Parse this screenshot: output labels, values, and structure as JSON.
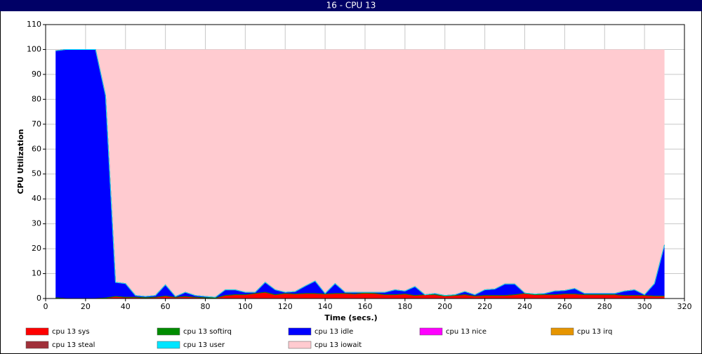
{
  "chart_data": {
    "type": "stacked-area",
    "title": "16 - CPU 13",
    "xlabel": "Time (secs.)",
    "ylabel": "CPU Utilization",
    "xlim": [
      0,
      320
    ],
    "xticks": [
      0,
      20,
      40,
      60,
      80,
      100,
      120,
      140,
      160,
      180,
      200,
      220,
      240,
      260,
      280,
      300,
      320
    ],
    "ylim": [
      0,
      110
    ],
    "yticks": [
      0,
      10,
      20,
      30,
      40,
      50,
      60,
      70,
      80,
      90,
      100,
      110
    ],
    "grid": true,
    "x": [
      5,
      10,
      15,
      20,
      25,
      30,
      35,
      40,
      45,
      50,
      55,
      60,
      65,
      70,
      75,
      80,
      85,
      90,
      95,
      100,
      105,
      110,
      115,
      120,
      125,
      130,
      135,
      140,
      145,
      150,
      155,
      160,
      165,
      170,
      175,
      180,
      185,
      190,
      195,
      200,
      205,
      210,
      215,
      220,
      225,
      230,
      235,
      240,
      245,
      250,
      255,
      260,
      265,
      270,
      275,
      280,
      285,
      290,
      295,
      300,
      305,
      310
    ],
    "series": [
      {
        "name": "cpu 13 sys",
        "color": "#ff0000",
        "values": [
          0.3,
          0,
          0,
          0,
          0,
          0.2,
          0.8,
          0.5,
          0.5,
          0.3,
          0.5,
          1,
          0.5,
          0.8,
          0.5,
          0.3,
          0.2,
          1.2,
          1.5,
          1.5,
          2,
          2.5,
          1.5,
          2,
          1.8,
          2,
          2,
          1.8,
          2,
          2,
          1.8,
          2.2,
          2,
          1.5,
          1.5,
          1.8,
          1.2,
          1.5,
          1.5,
          1,
          1.2,
          1.5,
          1,
          1.2,
          1.2,
          1.2,
          1.5,
          2,
          1.5,
          1.5,
          1.5,
          1.8,
          1.8,
          1.5,
          1.5,
          1.5,
          1.5,
          1.2,
          1.2,
          1.2,
          1,
          1
        ]
      },
      {
        "name": "cpu 13 softirq",
        "color": "#008c00",
        "values": [
          0,
          0,
          0,
          0,
          0,
          0,
          0,
          0,
          0,
          0,
          0,
          0,
          0,
          0,
          0,
          0,
          0,
          0,
          0,
          0,
          0,
          0,
          0,
          0,
          0,
          0,
          0,
          0,
          0,
          0,
          0,
          0,
          0,
          0,
          0,
          0,
          0,
          0,
          0,
          0,
          0,
          0,
          0,
          0,
          0,
          0,
          0,
          0,
          0,
          0,
          0,
          0,
          0,
          0,
          0,
          0,
          0,
          0,
          0,
          0,
          0,
          0
        ]
      },
      {
        "name": "cpu 13 idle",
        "color": "#0000ff",
        "values": [
          99.2,
          100,
          100,
          100,
          100,
          81.3,
          5.7,
          5.5,
          0.7,
          0.5,
          0.7,
          4.5,
          0.3,
          1.7,
          0.7,
          0.5,
          0.3,
          2.3,
          2,
          1,
          0.5,
          4,
          2,
          0.5,
          1,
          3,
          5,
          0.2,
          4,
          0.5,
          0.7,
          0.3,
          0.5,
          1,
          2,
          1.2,
          3.6,
          0,
          0.5,
          0.2,
          0.3,
          1.3,
          0.5,
          2.3,
          2.6,
          4.6,
          4.3,
          0.2,
          0.3,
          0.5,
          1.5,
          1.4,
          2.2,
          0.5,
          0.5,
          0.5,
          0.5,
          1.8,
          2.3,
          0.3,
          5,
          20.5
        ]
      },
      {
        "name": "cpu 13 nice",
        "color": "#ff00ff",
        "values": [
          0,
          0,
          0,
          0,
          0,
          0,
          0,
          0,
          0,
          0,
          0,
          0,
          0,
          0,
          0,
          0,
          0,
          0,
          0,
          0,
          0,
          0,
          0,
          0,
          0,
          0,
          0,
          0,
          0,
          0,
          0,
          0,
          0,
          0,
          0,
          0,
          0,
          0,
          0,
          0,
          0,
          0,
          0,
          0,
          0,
          0,
          0,
          0,
          0,
          0,
          0,
          0,
          0,
          0,
          0,
          0,
          0,
          0,
          0,
          0,
          0,
          0
        ]
      },
      {
        "name": "cpu 13 irq",
        "color": "#e69500",
        "values": [
          0,
          0,
          0,
          0,
          0,
          0,
          0,
          0,
          0,
          0,
          0,
          0,
          0,
          0,
          0,
          0,
          0,
          0,
          0,
          0,
          0,
          0,
          0,
          0,
          0,
          0,
          0,
          0,
          0,
          0,
          0,
          0,
          0,
          0,
          0,
          0,
          0,
          0,
          0,
          0,
          0,
          0,
          0,
          0,
          0,
          0,
          0,
          0,
          0,
          0,
          0,
          0,
          0,
          0,
          0,
          0,
          0,
          0,
          0,
          0,
          0,
          0
        ]
      },
      {
        "name": "cpu 13 steal",
        "color": "#a0303a",
        "values": [
          0,
          0,
          0,
          0,
          0,
          0,
          0,
          0,
          0,
          0,
          0,
          0,
          0,
          0,
          0,
          0,
          0,
          0,
          0,
          0,
          0,
          0,
          0,
          0,
          0,
          0,
          0,
          0,
          0,
          0,
          0,
          0,
          0,
          0,
          0,
          0,
          0,
          0,
          0,
          0,
          0,
          0,
          0,
          0,
          0,
          0,
          0,
          0,
          0,
          0,
          0,
          0,
          0,
          0,
          0,
          0,
          0,
          0,
          0,
          0,
          0,
          0
        ]
      },
      {
        "name": "cpu 13 user",
        "color": "#00e5ff",
        "values": [
          0,
          0,
          0,
          0,
          0,
          0,
          0,
          0,
          0,
          0,
          0,
          0,
          0,
          0,
          0,
          0,
          0,
          0,
          0,
          0,
          0,
          0,
          0,
          0,
          0,
          0,
          0,
          0,
          0,
          0,
          0,
          0,
          0,
          0,
          0,
          0,
          0,
          0,
          0,
          0,
          0,
          0,
          0,
          0,
          0,
          0,
          0,
          0,
          0,
          0,
          0,
          0,
          0,
          0,
          0,
          0,
          0,
          0,
          0,
          0,
          0,
          0
        ]
      },
      {
        "name": "cpu 13 iowait",
        "color": "#ffcbd0",
        "values": [
          0.5,
          0,
          0,
          0,
          0,
          18.5,
          93.5,
          94,
          98.8,
          99.2,
          98.8,
          94.5,
          99.2,
          97.5,
          98.8,
          99.2,
          99.5,
          96.5,
          96.5,
          97.5,
          97.5,
          93.5,
          96.5,
          97.5,
          97.2,
          95,
          93,
          98,
          94,
          97.5,
          97.5,
          97.5,
          97.5,
          97.5,
          96.5,
          97,
          95.2,
          98.5,
          98,
          98.8,
          98.5,
          97.2,
          98.5,
          96.5,
          96.2,
          94.2,
          94.2,
          97.8,
          98.2,
          98,
          97,
          96.8,
          96,
          98,
          98,
          98,
          98,
          97,
          96.5,
          98.5,
          94,
          78.5
        ]
      }
    ]
  }
}
